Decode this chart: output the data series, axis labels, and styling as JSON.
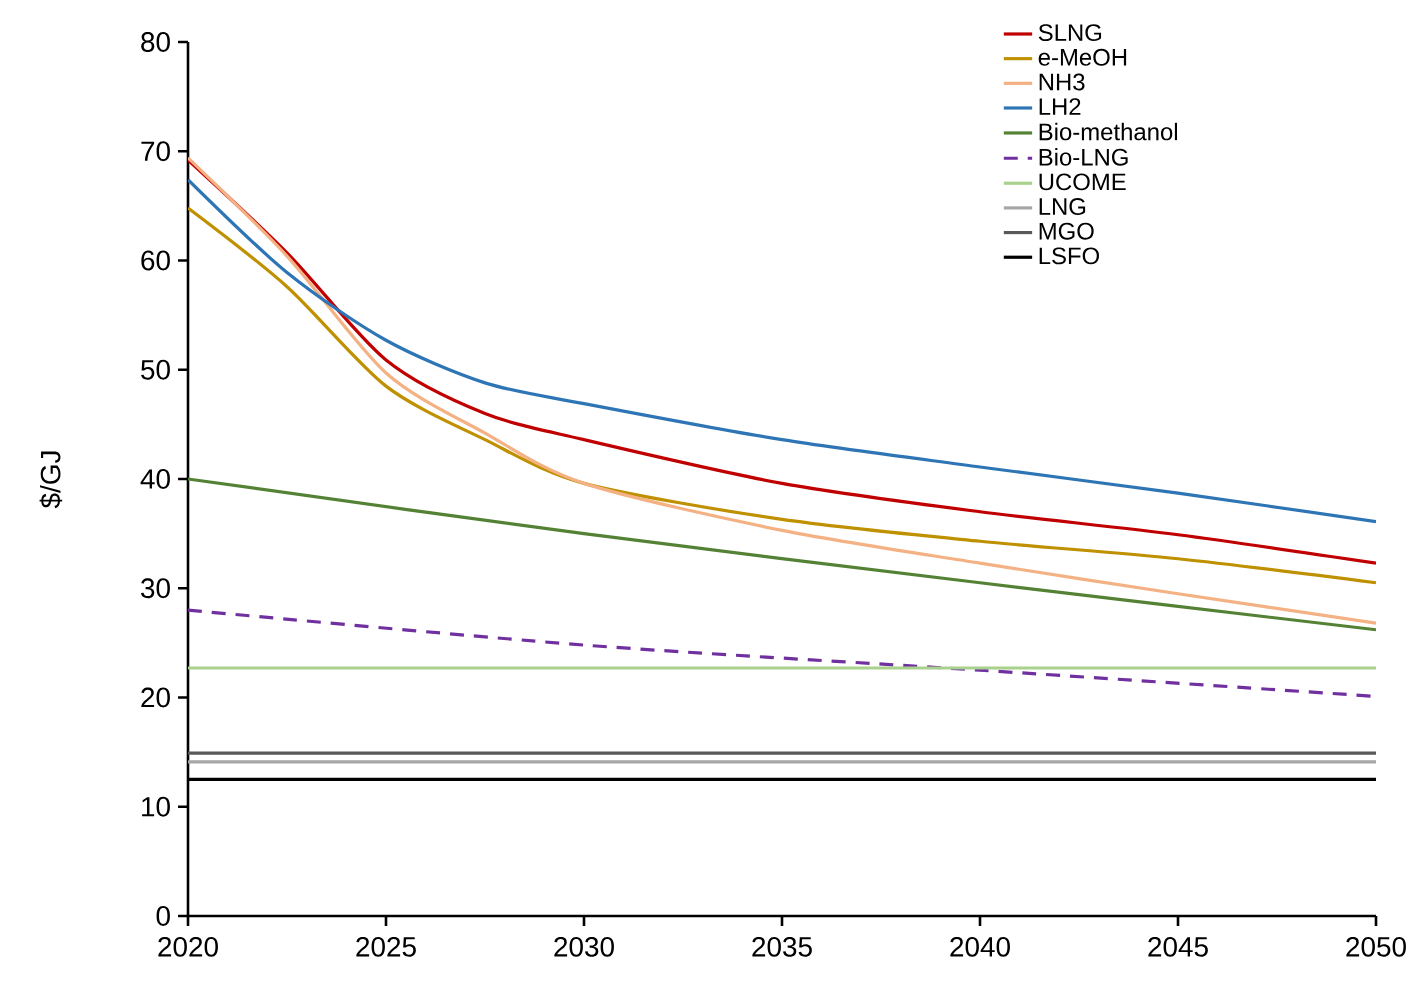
{
  "chart_data": {
    "type": "line",
    "ylabel": "$/GJ",
    "xlim": [
      2020,
      2050
    ],
    "xticks": [
      2020,
      2025,
      2030,
      2035,
      2040,
      2045,
      2050
    ],
    "ylim": [
      0,
      80
    ],
    "yticks": [
      0,
      10,
      20,
      30,
      40,
      50,
      60,
      70,
      80
    ],
    "grid": false,
    "legend": "top right",
    "marker": "none",
    "series": [
      {
        "name": "SLNG",
        "color": "#c00000",
        "x": [
          2020,
          2022.5,
          2025,
          2027.5,
          2030,
          2035,
          2040,
          2045,
          2050
        ],
        "values": [
          69.2,
          60.7,
          50.9,
          46.0,
          43.6,
          39.6,
          37.0,
          34.9,
          32.3
        ]
      },
      {
        "name": "e-MeOH",
        "color": "#bf9000",
        "x": [
          2020,
          2022.5,
          2025,
          2027.5,
          2030,
          2035,
          2040,
          2045,
          2050
        ],
        "values": [
          64.8,
          57.6,
          48.5,
          43.6,
          39.6,
          36.3,
          34.3,
          32.7,
          30.5
        ]
      },
      {
        "name": "NH3",
        "color": "#f4b183",
        "x": [
          2020,
          2022.5,
          2025,
          2027.5,
          2030,
          2035,
          2040,
          2045,
          2050
        ],
        "values": [
          69.4,
          60.4,
          49.7,
          44.2,
          39.6,
          35.3,
          32.3,
          29.5,
          26.8
        ]
      },
      {
        "name": "LH2",
        "color": "#2e75b6",
        "x": [
          2020,
          2022.5,
          2025,
          2027.5,
          2030,
          2035,
          2040,
          2045,
          2050
        ],
        "values": [
          67.4,
          58.9,
          52.7,
          48.8,
          46.9,
          43.6,
          41.1,
          38.7,
          36.1
        ]
      },
      {
        "name": "Bio-methanol",
        "color": "#548235",
        "x": [
          2020,
          2030,
          2040,
          2050
        ],
        "values": [
          40.0,
          35.0,
          30.5,
          26.2
        ]
      },
      {
        "name": "Bio-LNG",
        "color": "#7030a0",
        "line_style": "dashed",
        "x": [
          2020,
          2030,
          2040,
          2050
        ],
        "values": [
          28.0,
          24.8,
          22.5,
          20.1
        ]
      },
      {
        "name": "UCOME",
        "color": "#a9d18e",
        "x": [
          2020,
          2050
        ],
        "values": [
          22.7,
          22.7
        ]
      },
      {
        "name": "LNG",
        "color": "#a6a6a6",
        "x": [
          2020,
          2050
        ],
        "values": [
          14.1,
          14.1
        ]
      },
      {
        "name": "MGO",
        "color": "#595959",
        "x": [
          2020,
          2050
        ],
        "values": [
          14.9,
          14.9
        ]
      },
      {
        "name": "LSFO",
        "color": "#000000",
        "x": [
          2020,
          2050
        ],
        "values": [
          12.5,
          12.5
        ]
      }
    ]
  }
}
